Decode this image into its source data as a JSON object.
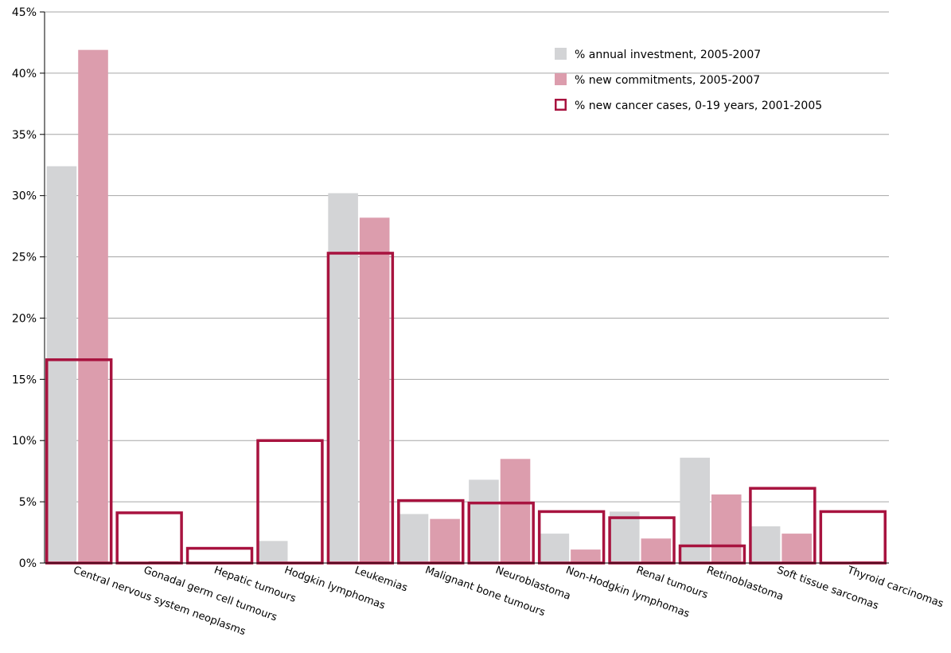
{
  "chart_data": {
    "type": "bar",
    "categories": [
      "Central nervous system neoplasms",
      "Gonadal germ cell tumours",
      "Hepatic tumours",
      "Hodgkin lymphomas",
      "Leukemias",
      "Malignant bone tumours",
      "Neuroblastoma",
      "Non-Hodgkin lymphomas",
      "Renal tumours",
      "Retinoblastoma",
      "Soft tissue sarcomas",
      "Thyroid carcinomas"
    ],
    "series": [
      {
        "name": "% annual investment, 2005-2007",
        "color": "#d3d4d6",
        "style": "filled",
        "values": [
          32.4,
          0.0,
          0.1,
          1.8,
          30.2,
          4.0,
          6.8,
          2.4,
          4.2,
          8.6,
          3.0,
          0.0
        ]
      },
      {
        "name": "% new commitments, 2005-2007",
        "color": "#dc9dad",
        "style": "filled",
        "values": [
          41.9,
          0.15,
          0.0,
          0.0,
          28.2,
          3.6,
          8.5,
          1.1,
          2.0,
          5.6,
          2.4,
          0.15
        ]
      },
      {
        "name": "% new cancer cases, 0-19 years, 2001-2005",
        "color": "#a8133f",
        "style": "outline",
        "values": [
          16.6,
          4.1,
          1.2,
          10.0,
          25.3,
          5.1,
          4.9,
          4.2,
          3.7,
          1.4,
          6.1,
          4.2
        ]
      }
    ],
    "yticks": [
      "0%",
      "5%",
      "10%",
      "15%",
      "20%",
      "25%",
      "30%",
      "35%",
      "40%",
      "45%"
    ],
    "ylim": [
      0,
      45
    ],
    "grid": true,
    "legend_position": "top-right",
    "title": "",
    "xlabel": "",
    "ylabel": ""
  }
}
